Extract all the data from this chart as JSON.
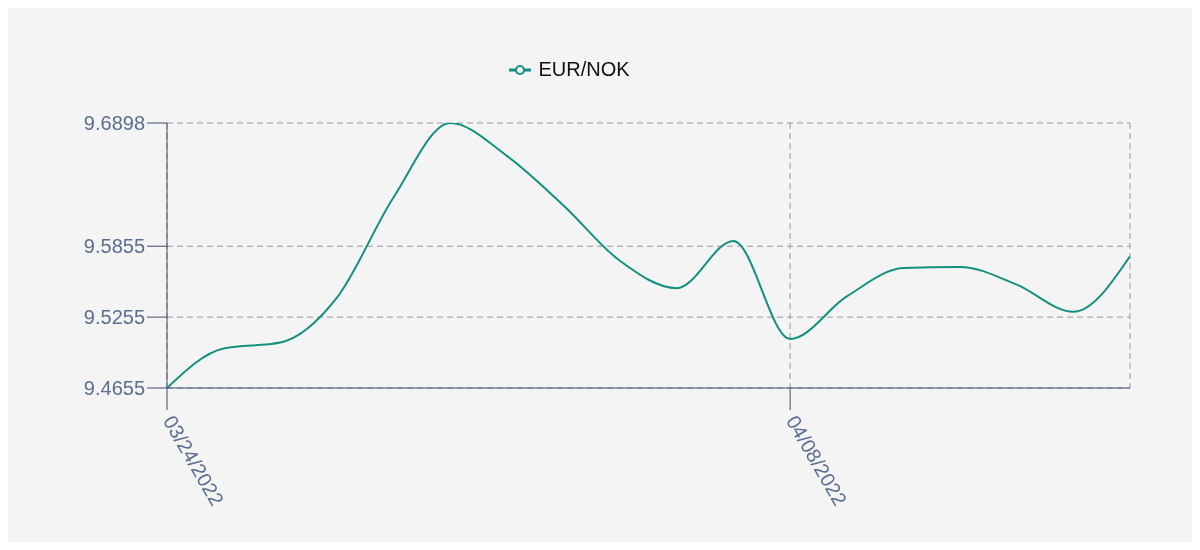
{
  "chart_data": {
    "type": "line",
    "categories": [
      "03/24/2022",
      null,
      null,
      null,
      null,
      null,
      null,
      null,
      null,
      null,
      null,
      "04/08/2022",
      null,
      null,
      null,
      null,
      null,
      null
    ],
    "series": [
      {
        "name": "EUR/NOK",
        "color": "#13917f",
        "values": [
          9.4655,
          9.499,
          9.504,
          9.542,
          9.627,
          9.6898,
          9.662,
          9.62,
          9.573,
          9.55,
          9.59,
          9.507,
          9.543,
          9.567,
          9.568,
          9.553,
          9.53,
          9.577
        ]
      }
    ],
    "ylim": [
      9.4655,
      9.6898
    ],
    "yticks": [
      9.4655,
      9.5255,
      9.5855,
      9.6898
    ],
    "grid": true,
    "legend": "top",
    "marker": "none",
    "line_style": "solid"
  }
}
